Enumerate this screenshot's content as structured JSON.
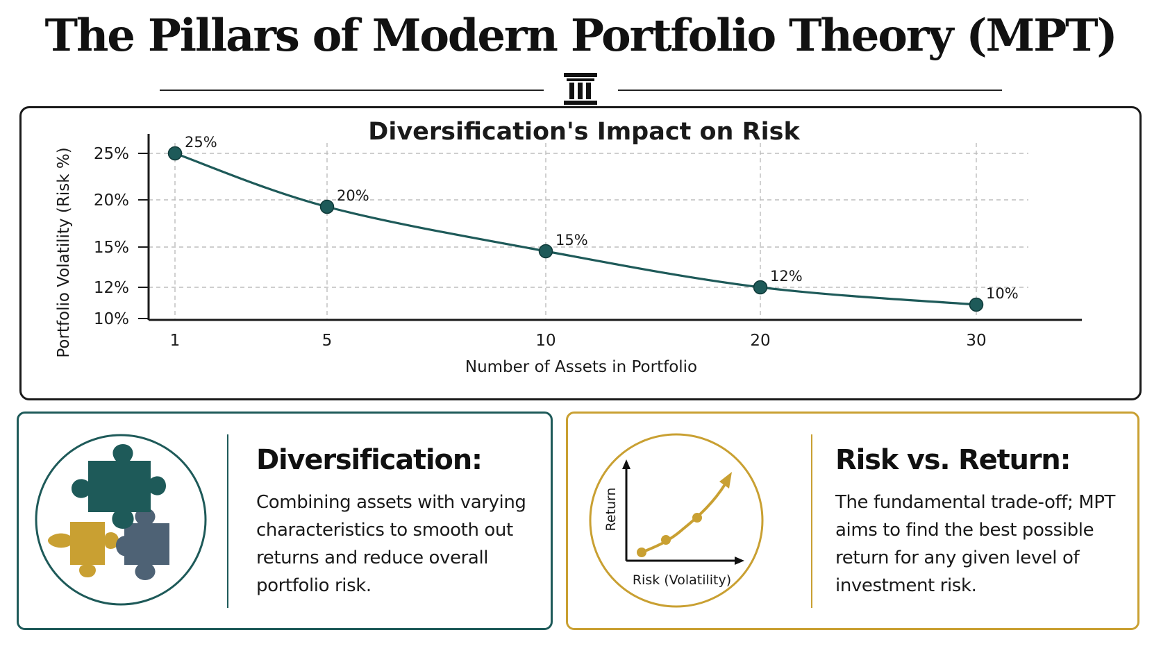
{
  "title": "The Pillars of Modern Portfolio Theory (MPT)",
  "colors": {
    "teal": "#1e5a59",
    "gold": "#c9a032",
    "slate": "#4e6275",
    "line": "#1e5a59",
    "grid": "#bdbdbd"
  },
  "chart_data": {
    "type": "line",
    "title": "Diversification's Impact on Risk",
    "xlabel": "Number of Assets in Portfolio",
    "ylabel": "Portfolio Volatility (Risk %)",
    "x": [
      1,
      5,
      10,
      20,
      30
    ],
    "x_tick_labels": [
      "1",
      "5",
      "10",
      "20",
      "30"
    ],
    "y_tick_labels": [
      "25%",
      "20%",
      "15%",
      "12%",
      "10%"
    ],
    "y_ticks": [
      25,
      20,
      15,
      12,
      10
    ],
    "series": [
      {
        "values": [
          25,
          20,
          15,
          12,
          10
        ],
        "data_labels": [
          "25%",
          "20%",
          "15%",
          "12%",
          "10%"
        ]
      }
    ],
    "grid": true,
    "marker": "circle"
  },
  "cards": [
    {
      "heading": "Diversification:",
      "text": "Combining assets with varying characteristics to smooth out returns and reduce overall portfolio risk.",
      "icon": "puzzle-pieces-icon"
    },
    {
      "heading": "Risk vs. Return:",
      "text": "The fundamental trade-off; MPT aims to find the best possible return for any given level of investment risk.",
      "icon": "risk-return-chart-icon",
      "icon_xlabel": "Risk (Volatility)",
      "icon_ylabel": "Return"
    }
  ]
}
